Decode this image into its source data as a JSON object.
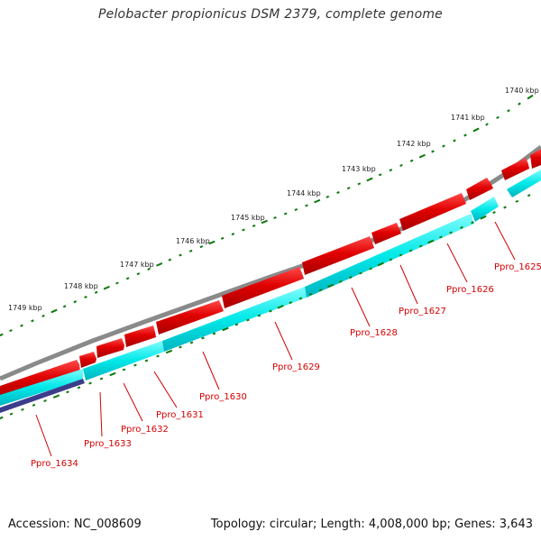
{
  "title": "Pelobacter propionicus DSM 2379, complete genome",
  "footer": {
    "accession": "Accession: NC_008609",
    "topology": "Topology: circular; Length: 4,008,000 bp; Genes: 3,643"
  },
  "colors": {
    "forward_gene": "#e00000",
    "reverse_gene": "#00e8e8",
    "other_feature": "#3c3c8c",
    "backbone": "#8a8a8a",
    "ticks": "#0a7a0a",
    "label": "#d40000"
  },
  "scale_labels": [
    "1740 kbp",
    "1741 kbp",
    "1742 kbp",
    "1743 kbp",
    "1744 kbp",
    "1745 kbp",
    "1746 kbp",
    "1747 kbp",
    "1748 kbp",
    "1749 kbp"
  ],
  "gene_labels": [
    "Ppro_1625",
    "Ppro_1626",
    "Ppro_1627",
    "Ppro_1628",
    "Ppro_1629",
    "Ppro_1630",
    "Ppro_1631",
    "Ppro_1632",
    "Ppro_1633",
    "Ppro_1634"
  ]
}
